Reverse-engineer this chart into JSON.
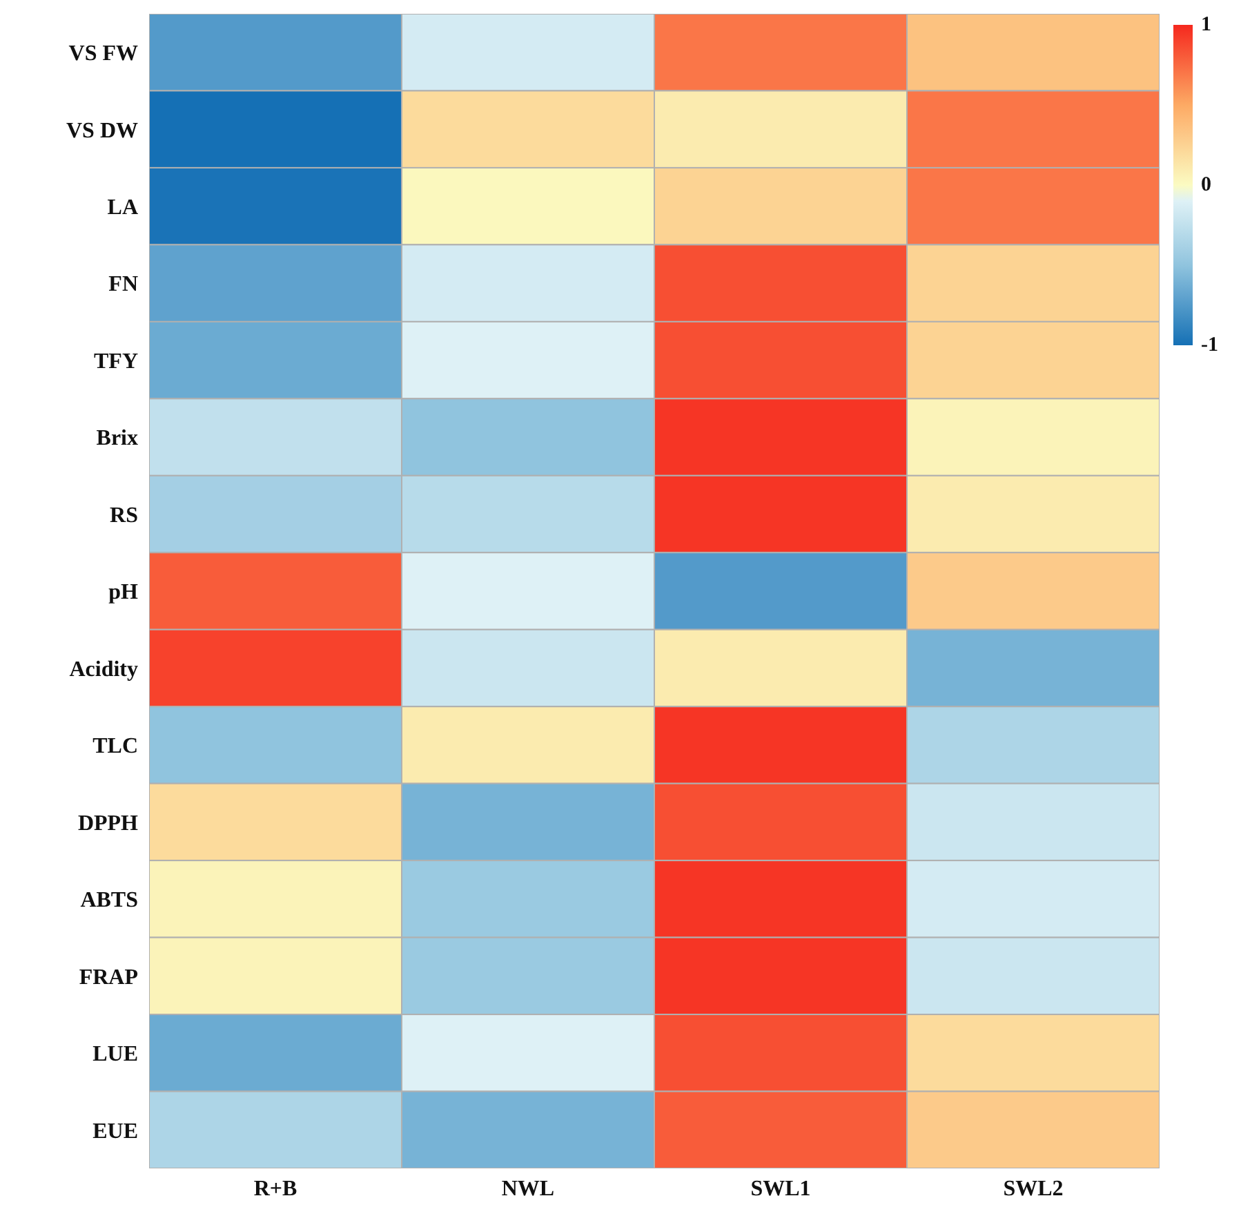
{
  "chart_data": {
    "type": "heatmap",
    "categories": [
      "R+B",
      "NWL",
      "SWL1",
      "SWL2"
    ],
    "y_categories": [
      "VS FW",
      "VS DW",
      "LA",
      "FN",
      "TFY",
      "Brix",
      "RS",
      "pH",
      "Acidity",
      "TLC",
      "DPPH",
      "ABTS",
      "FRAP",
      "LUE",
      "EUE"
    ],
    "cells": [
      [
        -0.75,
        -0.15,
        0.7,
        0.35
      ],
      [
        -1,
        0.2,
        0.1,
        0.7
      ],
      [
        -0.98,
        0.02,
        0.25,
        0.7
      ],
      [
        -0.7,
        -0.15,
        0.85,
        0.25
      ],
      [
        -0.65,
        -0.1,
        0.85,
        0.25
      ],
      [
        -0.25,
        -0.5,
        0.95,
        0.05
      ],
      [
        -0.4,
        -0.3,
        0.95,
        0.1
      ],
      [
        0.8,
        -0.1,
        -0.75,
        0.3
      ],
      [
        0.9,
        -0.2,
        0.1,
        -0.6
      ],
      [
        -0.5,
        0.1,
        0.95,
        -0.35
      ],
      [
        0.2,
        -0.6,
        0.85,
        -0.2
      ],
      [
        0.05,
        -0.45,
        0.95,
        -0.15
      ],
      [
        0.05,
        -0.45,
        0.95,
        -0.2
      ],
      [
        -0.65,
        -0.1,
        0.85,
        0.2
      ],
      [
        -0.35,
        -0.6,
        0.8,
        0.3
      ]
    ],
    "clim": [
      -1,
      1
    ],
    "cticks": [
      -1,
      0,
      1
    ]
  }
}
